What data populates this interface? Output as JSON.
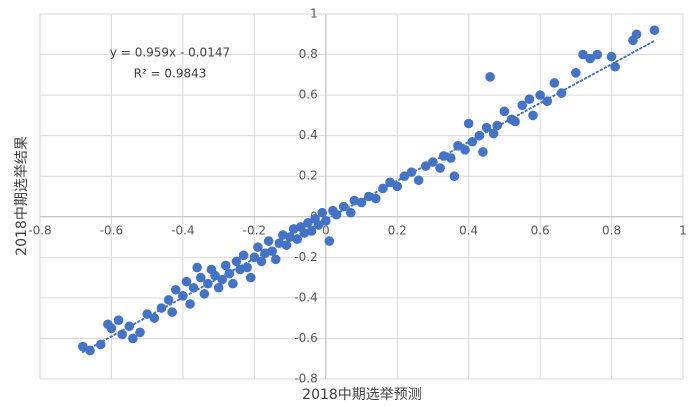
{
  "chart_data": {
    "type": "scatter",
    "x_label": "2018中期选举预测",
    "y_label": "2018中期选举结果",
    "annotations": [
      "y = 0.959x - 0.0147",
      "R² = 0.9843"
    ],
    "trendline": {
      "slope": 0.959,
      "intercept": -0.0147,
      "color": "#4472c4"
    },
    "color": "#4472c4",
    "grid": true,
    "xlim": [
      -0.8,
      1
    ],
    "ylim": [
      -0.8,
      1
    ],
    "xticks": [
      -0.8,
      -0.6,
      -0.4,
      -0.2,
      0,
      0.2,
      0.4,
      0.6,
      0.8,
      1
    ],
    "yticks": [
      -0.8,
      -0.6,
      -0.4,
      -0.2,
      0,
      0.2,
      0.4,
      0.6,
      0.8,
      1
    ],
    "x": [
      -0.68,
      -0.66,
      -0.63,
      -0.61,
      -0.6,
      -0.58,
      -0.57,
      -0.55,
      -0.54,
      -0.52,
      -0.5,
      -0.48,
      -0.46,
      -0.44,
      -0.43,
      -0.42,
      -0.4,
      -0.39,
      -0.38,
      -0.37,
      -0.36,
      -0.35,
      -0.34,
      -0.33,
      -0.32,
      -0.31,
      -0.3,
      -0.29,
      -0.28,
      -0.27,
      -0.26,
      -0.25,
      -0.24,
      -0.23,
      -0.22,
      -0.21,
      -0.2,
      -0.19,
      -0.18,
      -0.17,
      -0.16,
      -0.15,
      -0.14,
      -0.13,
      -0.12,
      -0.11,
      -0.1,
      -0.09,
      -0.08,
      -0.07,
      -0.06,
      -0.05,
      -0.04,
      -0.03,
      -0.02,
      -0.01,
      0,
      0.01,
      0.02,
      0.03,
      0.05,
      0.07,
      0.08,
      0.1,
      0.12,
      0.14,
      0.16,
      0.18,
      0.2,
      0.22,
      0.24,
      0.26,
      0.28,
      0.3,
      0.32,
      0.33,
      0.35,
      0.36,
      0.37,
      0.39,
      0.4,
      0.41,
      0.43,
      0.44,
      0.45,
      0.46,
      0.47,
      0.48,
      0.5,
      0.52,
      0.53,
      0.55,
      0.57,
      0.58,
      0.6,
      0.62,
      0.64,
      0.66,
      0.7,
      0.72,
      0.74,
      0.76,
      0.8,
      0.81,
      0.86,
      0.87,
      0.92
    ],
    "values": [
      -0.64,
      -0.66,
      -0.63,
      -0.53,
      -0.55,
      -0.51,
      -0.58,
      -0.54,
      -0.6,
      -0.57,
      -0.48,
      -0.5,
      -0.45,
      -0.41,
      -0.47,
      -0.36,
      -0.39,
      -0.32,
      -0.43,
      -0.35,
      -0.25,
      -0.3,
      -0.38,
      -0.33,
      -0.26,
      -0.29,
      -0.35,
      -0.31,
      -0.24,
      -0.28,
      -0.33,
      -0.22,
      -0.26,
      -0.19,
      -0.25,
      -0.3,
      -0.2,
      -0.15,
      -0.22,
      -0.18,
      -0.12,
      -0.17,
      -0.21,
      -0.13,
      -0.09,
      -0.14,
      -0.1,
      -0.06,
      -0.11,
      -0.05,
      -0.08,
      -0.03,
      -0.07,
      -0.01,
      -0.04,
      0.02,
      -0.02,
      -0.12,
      0.03,
      0.01,
      0.05,
      0.02,
      0.08,
      0.07,
      0.1,
      0.09,
      0.14,
      0.17,
      0.15,
      0.2,
      0.22,
      0.18,
      0.25,
      0.27,
      0.24,
      0.3,
      0.29,
      0.2,
      0.35,
      0.33,
      0.46,
      0.37,
      0.4,
      0.32,
      0.44,
      0.69,
      0.41,
      0.45,
      0.52,
      0.48,
      0.47,
      0.55,
      0.58,
      0.5,
      0.6,
      0.57,
      0.66,
      0.61,
      0.71,
      0.8,
      0.78,
      0.8,
      0.79,
      0.74,
      0.87,
      0.9,
      0.92
    ]
  }
}
